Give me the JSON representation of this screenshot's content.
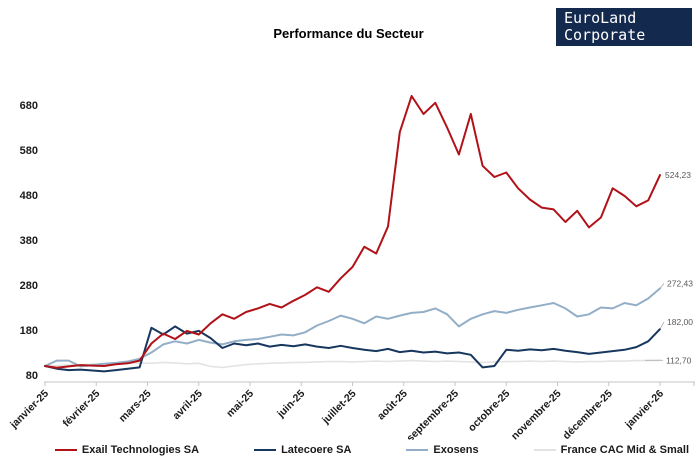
{
  "title": "Performance du Secteur",
  "logo": {
    "line1": "EuroLand",
    "line2": "Corporate",
    "bg_color": "#14294E",
    "text_color": "#FFFFFF"
  },
  "chart_data": {
    "type": "line",
    "title": "Performance du Secteur",
    "xlabel": "",
    "ylabel": "",
    "x_tick_labels": [
      "janvier-25",
      "février-25",
      "mars-25",
      "avril-25",
      "mai-25",
      "juin-25",
      "juillet-25",
      "août-25",
      "septembre-25",
      "octobre-25",
      "novembre-25",
      "décembre-25",
      "janvier-26"
    ],
    "y_ticks": [
      80,
      180,
      280,
      380,
      480,
      580,
      680
    ],
    "ylim": [
      80,
      730
    ],
    "grid": false,
    "legend_position": "bottom",
    "axis_color": "#C6C6C6",
    "tick_label_color": "#1A1A1A",
    "end_label_color": "#595959",
    "x_sampling": "weekly, 53 points from janvier-25 to janvier-26 (base 100)",
    "series": [
      {
        "name": "Exail Technologies SA",
        "color": "#B01218",
        "stroke_width": 2,
        "end_label": "524,23",
        "values": [
          100,
          96,
          99,
          102,
          101,
          100,
          104,
          106,
          112,
          150,
          172,
          160,
          178,
          170,
          195,
          215,
          205,
          220,
          228,
          238,
          230,
          245,
          258,
          275,
          265,
          295,
          320,
          365,
          350,
          410,
          620,
          700,
          660,
          685,
          630,
          570,
          660,
          545,
          520,
          530,
          495,
          470,
          452,
          448,
          420,
          445,
          408,
          430,
          495,
          478,
          455,
          468,
          524.23
        ]
      },
      {
        "name": "Latecoere SA",
        "color": "#17375E",
        "stroke_width": 2,
        "end_label": "182,00",
        "values": [
          100,
          94,
          91,
          92,
          90,
          88,
          91,
          94,
          97,
          185,
          170,
          188,
          172,
          178,
          162,
          140,
          150,
          146,
          150,
          143,
          147,
          144,
          148,
          143,
          140,
          145,
          140,
          136,
          133,
          138,
          131,
          134,
          130,
          132,
          128,
          130,
          125,
          97,
          100,
          136,
          134,
          137,
          135,
          138,
          134,
          131,
          127,
          130,
          133,
          136,
          142,
          155,
          182
        ]
      },
      {
        "name": "Exosens",
        "color": "#93AEC7",
        "stroke_width": 2,
        "end_label": "272,43",
        "values": [
          100,
          112,
          112,
          99,
          102,
          105,
          107,
          110,
          116,
          130,
          148,
          155,
          150,
          158,
          152,
          148,
          155,
          158,
          160,
          165,
          170,
          168,
          175,
          190,
          200,
          212,
          205,
          195,
          210,
          205,
          212,
          218,
          220,
          228,
          215,
          188,
          205,
          215,
          222,
          218,
          225,
          230,
          235,
          240,
          228,
          210,
          215,
          230,
          228,
          240,
          235,
          250,
          272.43
        ]
      },
      {
        "name": "France CAC Mid & Small",
        "color": "#E3E3E3",
        "stroke_width": 1.6,
        "end_label": "112,70",
        "values": [
          100,
          101,
          102,
          103,
          104,
          105,
          106,
          106,
          107,
          106,
          108,
          107,
          105,
          106,
          99,
          97,
          100,
          103,
          105,
          106,
          107,
          108,
          108,
          109,
          110,
          110,
          109,
          110,
          111,
          110,
          111,
          112,
          111,
          110,
          111,
          110,
          109,
          108,
          109,
          110,
          110,
          111,
          110,
          111,
          110,
          109,
          110,
          110,
          111,
          111,
          112,
          112,
          112.7
        ]
      }
    ]
  }
}
